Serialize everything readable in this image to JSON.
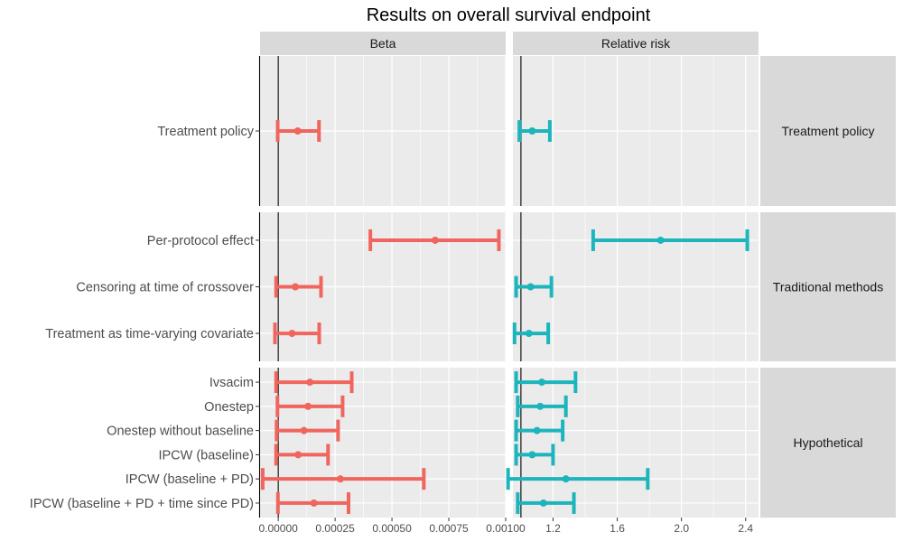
{
  "chart_data": {
    "type": "forest",
    "title": "Results on overall survival endpoint",
    "facets": [
      {
        "label": "Beta",
        "color": "#F0655E",
        "xlim": [
          -8e-05,
          0.001
        ],
        "ticks": [
          0,
          0.00025,
          0.0005,
          0.00075,
          0.001
        ],
        "tick_labels": [
          "0.00000",
          "0.00025",
          "0.00050",
          "0.00075",
          "0.00100"
        ],
        "ref_line": 0
      },
      {
        "label": "Relative risk",
        "color": "#1CB5BC",
        "xlim": [
          0.95,
          2.48
        ],
        "ticks": [
          1.2,
          1.6,
          2.0,
          2.4
        ],
        "tick_labels": [
          "1.2",
          "1.6",
          "2.0",
          "2.4"
        ],
        "ref_line": 1.0
      }
    ],
    "groups": [
      {
        "label": "Treatment policy",
        "rows": [
          {
            "label": "Treatment policy",
            "beta": {
              "est": 8.55e-05,
              "lo": -2.5e-06,
              "hi": 0.000179
            },
            "rr": {
              "est": 1.07,
              "lo": 0.99,
              "hi": 1.18
            }
          }
        ]
      },
      {
        "label": "Traditional methods",
        "rows": [
          {
            "label": "Per-protocol effect",
            "beta": {
              "est": 0.00069,
              "lo": 0.000405,
              "hi": 0.00097
            },
            "rr": {
              "est": 1.87,
              "lo": 1.45,
              "hi": 2.41
            }
          },
          {
            "label": "Censoring at time of crossover",
            "beta": {
              "est": 7.5e-05,
              "lo": -9.5e-06,
              "hi": 0.000188
            },
            "rr": {
              "est": 1.06,
              "lo": 0.97,
              "hi": 1.19
            }
          },
          {
            "label": "Treatment as time-varying covariate",
            "beta": {
              "est": 6.05e-05,
              "lo": -1.45e-05,
              "hi": 0.00018
            },
            "rr": {
              "est": 1.05,
              "lo": 0.96,
              "hi": 1.17
            }
          }
        ]
      },
      {
        "label": "Hypothetical",
        "rows": [
          {
            "label": "Ivsacim",
            "beta": {
              "est": 0.000139,
              "lo": -9.5e-06,
              "hi": 0.000323
            },
            "rr": {
              "est": 1.13,
              "lo": 0.97,
              "hi": 1.34
            }
          },
          {
            "label": "Onestep",
            "beta": {
              "est": 0.000131,
              "lo": -3.5e-06,
              "hi": 0.000283
            },
            "rr": {
              "est": 1.12,
              "lo": 0.98,
              "hi": 1.28
            }
          },
          {
            "label": "Onestep without baseline",
            "beta": {
              "est": 0.000113,
              "lo": -7.5e-06,
              "hi": 0.000263
            },
            "rr": {
              "est": 1.1,
              "lo": 0.97,
              "hi": 1.26
            }
          },
          {
            "label": "IPCW (baseline)",
            "beta": {
              "est": 8.75e-05,
              "lo": -9.5e-06,
              "hi": 0.000219
            },
            "rr": {
              "est": 1.07,
              "lo": 0.97,
              "hi": 1.2
            }
          },
          {
            "label": "IPCW (baseline + PD)",
            "beta": {
              "est": 0.000273,
              "lo": -6.85e-05,
              "hi": 0.00064
            },
            "rr": {
              "est": 1.28,
              "lo": 0.92,
              "hi": 1.79
            }
          },
          {
            "label": "IPCW (baseline + PD + time since PD)",
            "beta": {
              "est": 0.000157,
              "lo": -1.5e-06,
              "hi": 0.000309
            },
            "rr": {
              "est": 1.14,
              "lo": 0.98,
              "hi": 1.33
            }
          }
        ]
      }
    ],
    "xlabel": "",
    "ylabel": "",
    "legend": "none",
    "grid": true
  }
}
